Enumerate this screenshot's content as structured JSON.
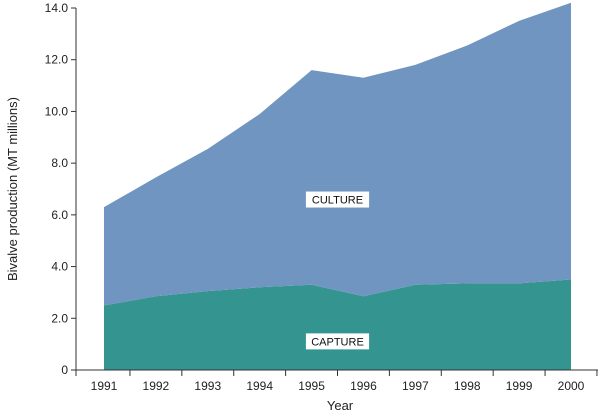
{
  "chart_data": {
    "type": "area",
    "stacked": true,
    "title": "",
    "xlabel": "Year",
    "ylabel": "Bivalve production (MT millions)",
    "x": [
      1991,
      1992,
      1993,
      1994,
      1995,
      1996,
      1997,
      1998,
      1999,
      2000
    ],
    "xticks": [
      "1991",
      "1992",
      "1993",
      "1994",
      "1995",
      "1996",
      "1997",
      "1998",
      "1999",
      "2000"
    ],
    "ylim": [
      0,
      14
    ],
    "yticks": [
      "0",
      "2.0",
      "4.0",
      "6.0",
      "8.0",
      "10.0",
      "12.0",
      "14.0"
    ],
    "grid": false,
    "series": [
      {
        "name": "CAPTURE",
        "color": "#339490",
        "values": [
          2.5,
          2.85,
          3.05,
          3.2,
          3.3,
          2.85,
          3.3,
          3.35,
          3.35,
          3.5
        ]
      },
      {
        "name": "CULTURE",
        "color": "#6f95c0",
        "values": [
          3.8,
          4.6,
          5.5,
          6.7,
          8.3,
          8.45,
          8.5,
          9.2,
          10.15,
          10.7
        ]
      }
    ]
  }
}
